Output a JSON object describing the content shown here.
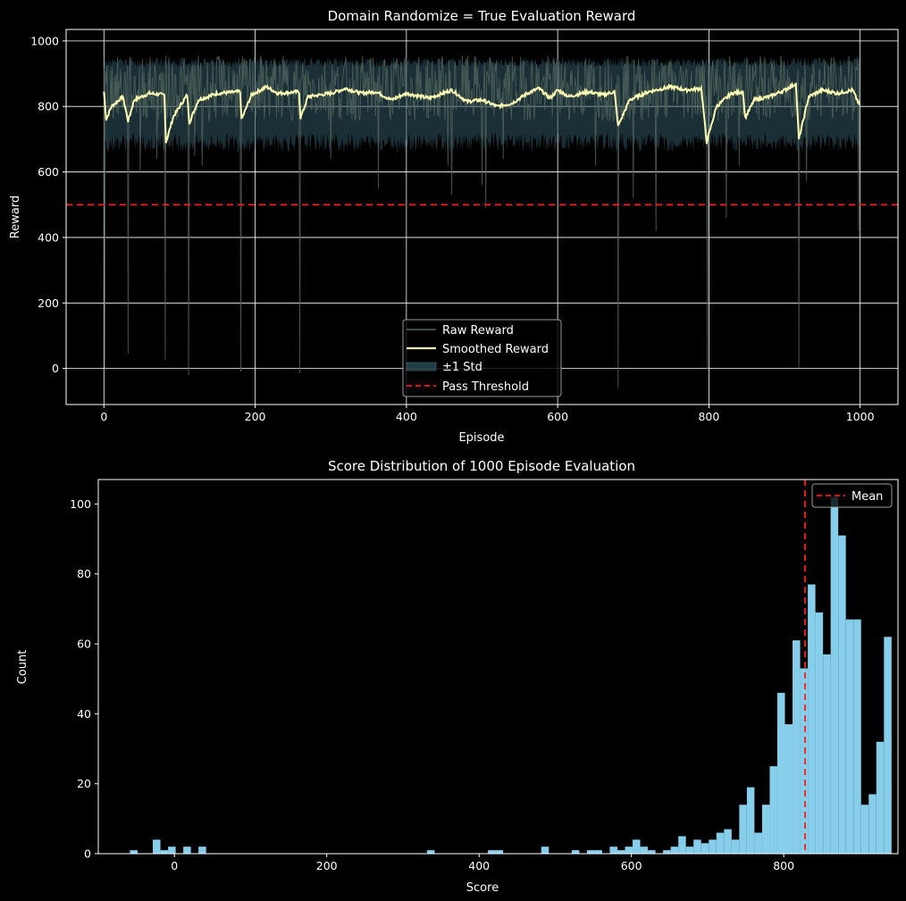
{
  "figure": {
    "background": "#000000",
    "foreground": "#ffffff"
  },
  "chart_data": [
    {
      "type": "line",
      "title": "Domain Randomize = True Evaluation Reward",
      "xlabel": "Episode",
      "ylabel": "Reward",
      "xlim": [
        -50,
        1050
      ],
      "ylim": [
        -110,
        1035
      ],
      "xticks": [
        0,
        200,
        400,
        600,
        800,
        1000
      ],
      "yticks": [
        0,
        200,
        400,
        600,
        800,
        1000
      ],
      "grid": true,
      "legend_position": "lower-center",
      "legend": [
        {
          "label": "Raw Reward",
          "style": "line",
          "color": "#55685f"
        },
        {
          "label": "Smoothed Reward",
          "style": "line",
          "color": "#ffffb3"
        },
        {
          "label": "±1 Std",
          "style": "patch",
          "color": "#2f5662"
        },
        {
          "label": "Pass Threshold",
          "style": "dashed",
          "color": "#ff1a1a"
        }
      ],
      "pass_threshold": 500,
      "colors": {
        "raw": "#55685f",
        "smoothed": "#ffffb3",
        "std_fill": "#2f5662",
        "threshold": "#ff1a1a"
      },
      "raw_dips": [
        [
          1,
          0
        ],
        [
          32,
          45
        ],
        [
          81,
          25
        ],
        [
          112,
          -20
        ],
        [
          181,
          -10
        ],
        [
          259,
          -15
        ],
        [
          680,
          -60
        ],
        [
          798,
          0
        ],
        [
          919,
          0
        ],
        [
          998,
          420
        ],
        [
          48,
          600
        ],
        [
          130,
          620
        ],
        [
          300,
          640
        ],
        [
          363,
          550
        ],
        [
          455,
          620
        ],
        [
          460,
          530
        ],
        [
          500,
          560
        ],
        [
          505,
          490
        ],
        [
          528,
          640
        ],
        [
          650,
          620
        ],
        [
          700,
          520
        ],
        [
          730,
          420
        ],
        [
          823,
          460
        ],
        [
          840,
          620
        ],
        [
          929,
          570
        ],
        [
          120,
          650
        ],
        [
          70,
          640
        ]
      ],
      "smoothed_anchors": [
        [
          0,
          845
        ],
        [
          3,
          760
        ],
        [
          10,
          800
        ],
        [
          25,
          830
        ],
        [
          32,
          755
        ],
        [
          40,
          820
        ],
        [
          60,
          840
        ],
        [
          80,
          835
        ],
        [
          82,
          690
        ],
        [
          92,
          770
        ],
        [
          110,
          835
        ],
        [
          113,
          750
        ],
        [
          125,
          820
        ],
        [
          150,
          840
        ],
        [
          180,
          845
        ],
        [
          182,
          760
        ],
        [
          195,
          835
        ],
        [
          215,
          860
        ],
        [
          230,
          840
        ],
        [
          258,
          845
        ],
        [
          260,
          765
        ],
        [
          270,
          830
        ],
        [
          300,
          840
        ],
        [
          320,
          855
        ],
        [
          340,
          840
        ],
        [
          360,
          845
        ],
        [
          380,
          820
        ],
        [
          400,
          840
        ],
        [
          430,
          825
        ],
        [
          460,
          850
        ],
        [
          480,
          815
        ],
        [
          500,
          820
        ],
        [
          520,
          800
        ],
        [
          540,
          810
        ],
        [
          560,
          840
        ],
        [
          575,
          855
        ],
        [
          590,
          825
        ],
        [
          600,
          850
        ],
        [
          615,
          830
        ],
        [
          640,
          845
        ],
        [
          660,
          835
        ],
        [
          675,
          845
        ],
        [
          680,
          740
        ],
        [
          695,
          820
        ],
        [
          720,
          845
        ],
        [
          750,
          860
        ],
        [
          770,
          850
        ],
        [
          790,
          855
        ],
        [
          797,
          690
        ],
        [
          810,
          800
        ],
        [
          830,
          840
        ],
        [
          845,
          845
        ],
        [
          848,
          765
        ],
        [
          860,
          820
        ],
        [
          880,
          830
        ],
        [
          900,
          850
        ],
        [
          915,
          870
        ],
        [
          919,
          700
        ],
        [
          932,
          830
        ],
        [
          950,
          850
        ],
        [
          970,
          840
        ],
        [
          990,
          850
        ],
        [
          1000,
          800
        ]
      ],
      "std_upper": 950,
      "std_lower": 700,
      "raw_range": [
        755,
        955
      ]
    },
    {
      "type": "bar",
      "title": "Score Distribution of 1000 Episode Evaluation",
      "xlabel": "Score",
      "ylabel": "Count",
      "xlim": [
        -100,
        950
      ],
      "ylim": [
        0,
        107
      ],
      "xticks": [
        0,
        200,
        400,
        600,
        800
      ],
      "yticks": [
        0,
        20,
        40,
        60,
        80,
        100
      ],
      "grid": false,
      "legend_position": "top-right",
      "legend": [
        {
          "label": "Mean",
          "style": "dashed",
          "color": "#ff1a1a"
        }
      ],
      "mean": 828,
      "bar_color": "#87ceeb",
      "bins": {
        "start": -58.4,
        "width": 10.0,
        "counts": [
          1,
          0,
          0,
          4,
          1,
          2,
          0,
          2,
          0,
          2,
          0,
          0,
          0,
          0,
          0,
          0,
          0,
          0,
          0,
          0,
          0,
          0,
          0,
          0,
          0,
          0,
          0,
          0,
          0,
          0,
          0,
          0,
          0,
          0,
          0,
          0,
          0,
          0,
          0,
          1,
          0,
          0,
          0,
          0,
          0,
          0,
          0,
          1,
          1,
          0,
          0,
          0,
          0,
          0,
          2,
          0,
          0,
          0,
          1,
          0,
          1,
          1,
          0,
          2,
          1,
          2,
          4,
          2,
          1,
          0,
          1,
          2,
          5,
          2,
          4,
          3,
          4,
          6,
          7,
          4,
          14,
          19,
          6,
          14,
          25,
          46,
          37,
          61,
          53,
          77,
          69,
          57,
          102,
          91,
          67,
          67,
          14,
          17,
          32,
          62
        ]
      }
    }
  ]
}
